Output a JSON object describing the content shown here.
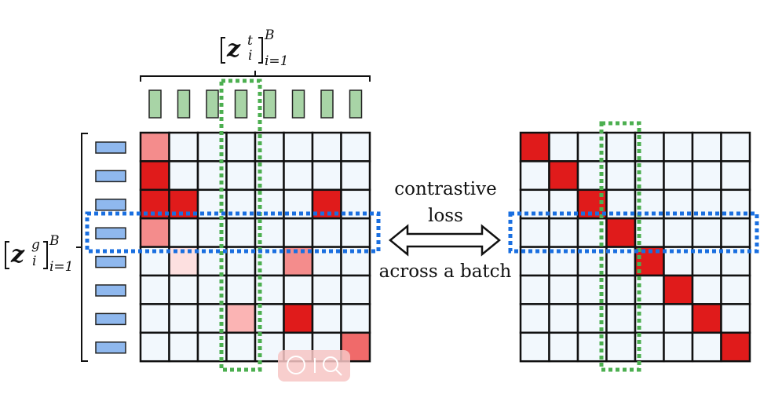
{
  "colors": {
    "grid_line": "#111111",
    "cell_bg": "#f2f8fd",
    "text_token": "#a8d4a6",
    "text_token_border": "#222222",
    "graph_token": "#8fb8ee",
    "graph_token_border": "#222222",
    "highlight_text": "#4caf50",
    "highlight_graph": "#1a6fe0",
    "red_strong": "#e01b1b",
    "red_mid": "#f48c8c",
    "red_light": "#fbb4b4",
    "red_pale": "#fde0e0",
    "red_coral": "#f06a6a",
    "watermark": "#f7c6c4"
  },
  "left_matrix": {
    "rows": 8,
    "cols": 8,
    "cells": [
      [
        "mid",
        "",
        "",
        "",
        "",
        "",
        "",
        ""
      ],
      [
        "strong",
        "",
        "",
        "",
        "",
        "",
        "",
        ""
      ],
      [
        "strong",
        "strong",
        "",
        "",
        "",
        "",
        "strong",
        ""
      ],
      [
        "mid",
        "",
        "",
        "",
        "",
        "",
        "",
        ""
      ],
      [
        "",
        "pale",
        "",
        "",
        "",
        "mid",
        "",
        ""
      ],
      [
        "",
        "",
        "",
        "",
        "",
        "",
        "",
        ""
      ],
      [
        "",
        "",
        "",
        "light",
        "",
        "strong",
        "",
        ""
      ],
      [
        "",
        "",
        "",
        "",
        "",
        "",
        "",
        "coral"
      ]
    ]
  },
  "right_matrix": {
    "rows": 8,
    "cols": 8,
    "diagonal": "strong"
  },
  "labels": {
    "top_math": {
      "z": "z",
      "sup": "t",
      "sub": "i",
      "outer_sup": "B",
      "range": "i=1"
    },
    "left_math": {
      "z": "z",
      "sup": "g",
      "sub": "i",
      "outer_sup": "B",
      "range": "i=1"
    },
    "middle_line1": "contrastive",
    "middle_line2": "loss",
    "middle_line3": "across a batch"
  },
  "icons": {
    "watermark": "ai-search-icon"
  }
}
